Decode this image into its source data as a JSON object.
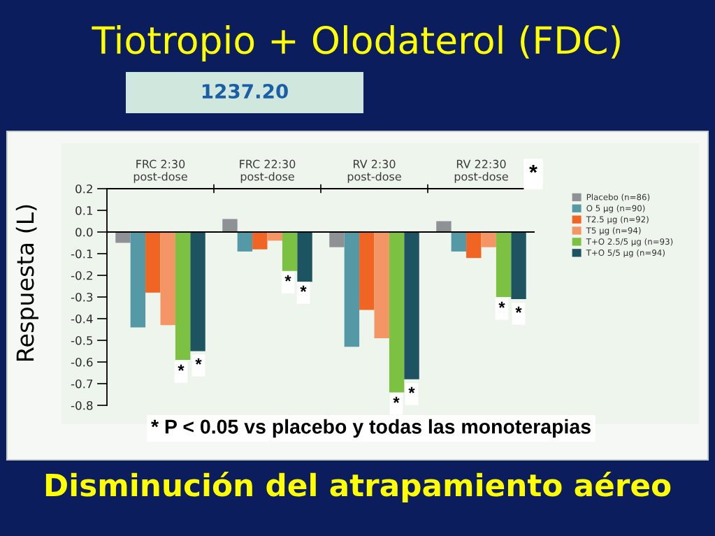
{
  "chart_data": {
    "type": "bar",
    "title": "Tiotropio + Olodaterol (FDC)",
    "subtitle": "Disminución del atrapamiento aéreo",
    "ylabel": "Respuesta (L)",
    "categories": [
      "FRC 2:30\npost-dose",
      "FRC 22:30\npost-dose",
      "RV 2:30\npost-dose",
      "RV 22:30\npost-dose"
    ],
    "series": [
      {
        "name": "Placebo (n=86)",
        "color": "#8f9295",
        "values": [
          -0.05,
          0.06,
          -0.07,
          0.05
        ]
      },
      {
        "name": "O 5 µg (n=90)",
        "color": "#5598a6",
        "values": [
          -0.44,
          -0.09,
          -0.53,
          -0.09
        ]
      },
      {
        "name": "T2.5 µg (n=92)",
        "color": "#f06424",
        "values": [
          -0.28,
          -0.08,
          -0.36,
          -0.12
        ]
      },
      {
        "name": "T5 µg (n=94)",
        "color": "#f49566",
        "values": [
          -0.43,
          -0.04,
          -0.49,
          -0.07
        ]
      },
      {
        "name": "T+O 2.5/5 µg (n=93)",
        "color": "#7dc142",
        "values": [
          -0.59,
          -0.18,
          -0.74,
          -0.3
        ]
      },
      {
        "name": "T+O 5/5 µg (n=94)",
        "color": "#1e5461",
        "values": [
          -0.55,
          -0.23,
          -0.68,
          -0.31
        ]
      }
    ],
    "ylim": [
      -0.8,
      0.2
    ],
    "yticks": [
      -0.8,
      -0.7,
      -0.6,
      -0.5,
      -0.4,
      -0.3,
      -0.2,
      -0.1,
      {
        "value": 0,
        "label": "0.0"
      },
      0.1,
      0.2
    ],
    "legend": "right",
    "annotations": [
      "1237.20",
      "*",
      "* P < 0.05 vs placebo y todas las monoterapias",
      "*",
      "*",
      "*",
      "*",
      "*",
      "*",
      "*",
      "*"
    ]
  }
}
